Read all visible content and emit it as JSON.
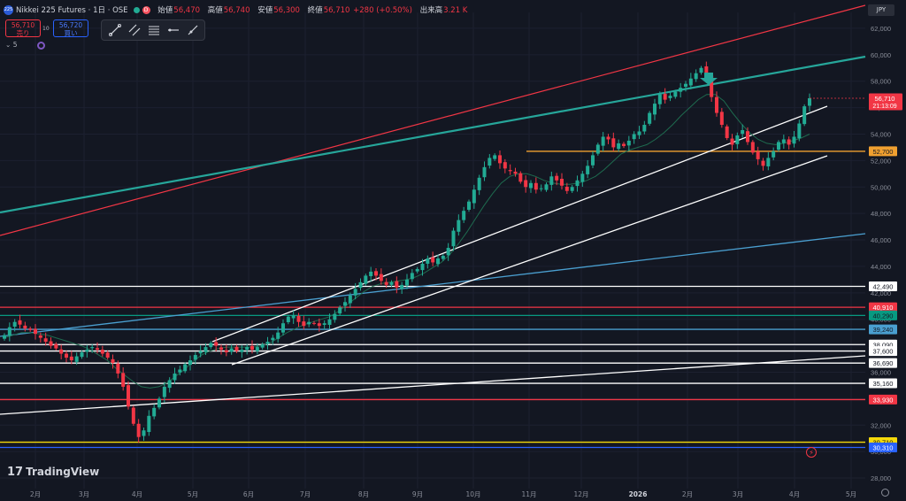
{
  "header": {
    "logo_text": "225",
    "title": "Nikkei 225 Futures · 1日 · OSE",
    "d_badge": "D",
    "open_label": "始値",
    "open": "56,470",
    "high_label": "高値",
    "high": "56,740",
    "low_label": "安値",
    "low": "56,300",
    "close_label": "終値",
    "close": "56,710",
    "change": "+280 (+0.50%)",
    "volume_label": "出来高",
    "volume": "3.21 K"
  },
  "trade": {
    "sell_price": "56,710",
    "sell_label": "売り",
    "spread": "10",
    "buy_price": "56,720",
    "buy_label": "買い"
  },
  "indicator_count": "5",
  "currency": "JPY",
  "brand": "TradingView",
  "colors": {
    "bg": "#131722",
    "up": "#22ab94",
    "down": "#f23645",
    "white": "#ffffff",
    "red": "#f23645",
    "green": "#089981",
    "teal": "#26a69a",
    "blue": "#4a9fd0",
    "orange": "#f0a030",
    "yellow": "#f5d90a",
    "navy": "#2962ff",
    "ma": "#1e6b4f"
  },
  "chart_data": {
    "type": "candlestick",
    "currency": "JPY",
    "x_labels": [
      "2月",
      "3月",
      "4月",
      "5月",
      "6月",
      "7月",
      "8月",
      "9月",
      "10月",
      "11月",
      "12月",
      "2026",
      "2月",
      "3月",
      "4月",
      "5月"
    ],
    "y_ticks": [
      28000,
      30000,
      32000,
      34000,
      36000,
      38000,
      40000,
      42000,
      44000,
      46000,
      48000,
      50000,
      52000,
      54000,
      56000,
      58000,
      60000,
      62000
    ],
    "ylim": [
      27200,
      63200
    ],
    "current_price": 56710,
    "countdown": "21:13:09",
    "horizontal_levels": [
      {
        "label": "42,490",
        "value": 42490,
        "color": "white"
      },
      {
        "label": "40,910",
        "value": 40910,
        "color": "red"
      },
      {
        "label": "40,290",
        "value": 40290,
        "color": "green"
      },
      {
        "label": "39,240",
        "value": 39240,
        "color": "blue"
      },
      {
        "label": "38,090",
        "value": 38090,
        "color": "white"
      },
      {
        "label": "37,600",
        "value": 37600,
        "color": "white"
      },
      {
        "label": "36,690",
        "value": 36690,
        "color": "white"
      },
      {
        "label": "35,160",
        "value": 35160,
        "color": "white"
      },
      {
        "label": "33,930",
        "value": 33930,
        "color": "red"
      },
      {
        "label": "30,710",
        "value": 30710,
        "color": "yellow"
      },
      {
        "label": "30,310",
        "value": 30310,
        "color": "navy"
      },
      {
        "label": "52,700",
        "value": 52700,
        "color": "orange"
      }
    ],
    "closes": [
      38800,
      39400,
      39800,
      39600,
      39300,
      39200,
      38900,
      38600,
      38300,
      38000,
      37800,
      37400,
      37100,
      36900,
      37200,
      37500,
      37700,
      37900,
      37700,
      37400,
      37100,
      36700,
      35900,
      34900,
      33400,
      32100,
      31100,
      31600,
      32700,
      33300,
      34000,
      34900,
      35400,
      35900,
      36200,
      36600,
      36900,
      37300,
      37600,
      37900,
      38200,
      38000,
      37700,
      37500,
      37800,
      37600,
      37700,
      37900,
      37700,
      37900,
      38100,
      38300,
      38600,
      39000,
      39700,
      40200,
      40300,
      39800,
      39500,
      39800,
      39700,
      39500,
      39700,
      40000,
      40400,
      40900,
      41300,
      41800,
      42300,
      42800,
      43300,
      43600,
      43300,
      42900,
      42600,
      42800,
      42400,
      42600,
      43000,
      43500,
      43800,
      44200,
      44600,
      44300,
      44600,
      44800,
      45400,
      46700,
      47500,
      48200,
      48900,
      49800,
      50700,
      51500,
      52200,
      52400,
      51800,
      51400,
      51200,
      51000,
      50400,
      50000,
      50300,
      49800,
      49900,
      50200,
      50800,
      50500,
      50100,
      49700,
      50000,
      50500,
      51000,
      51600,
      52400,
      53200,
      53800,
      53600,
      53000,
      53300,
      53100,
      53500,
      54000,
      54200,
      54700,
      55600,
      56300,
      57000,
      56600,
      56900,
      57200,
      57500,
      57800,
      58200,
      58600,
      59000,
      58500,
      56800,
      55600,
      54700,
      53700,
      53200,
      53900,
      54300,
      53400,
      52600,
      52100,
      51600,
      52200,
      52700,
      53400,
      53600,
      53200,
      53800,
      54800,
      56100,
      56710
    ],
    "ma_values": [
      38600,
      38800,
      39000,
      39000,
      38900,
      38800,
      38600,
      38400,
      38200,
      38000,
      37700,
      37300,
      36900,
      36300,
      35800,
      35300,
      34900,
      34800,
      34900,
      35200,
      35700,
      36200,
      36800,
      37300,
      37600,
      37800,
      37900,
      37900,
      37900,
      37900,
      38000,
      38200,
      38600,
      39000,
      39300,
      39600,
      39800,
      40000,
      40200,
      40600,
      41100,
      41600,
      42100,
      42500,
      42700,
      42800,
      42900,
      43000,
      43200,
      43500,
      43900,
      44300,
      44900,
      45700,
      46600,
      47600,
      48600,
      49500,
      50300,
      50800,
      51000,
      51000,
      50800,
      50500,
      50300,
      50200,
      50200,
      50300,
      50500,
      50800,
      51300,
      51900,
      52500,
      52800,
      53000,
      53200,
      53600,
      54100,
      54700,
      55400,
      56000,
      56600,
      57000,
      57000,
      56500,
      55600,
      54800,
      54100,
      53600,
      53300,
      53200,
      53300,
      53500,
      53700,
      54000
    ]
  }
}
